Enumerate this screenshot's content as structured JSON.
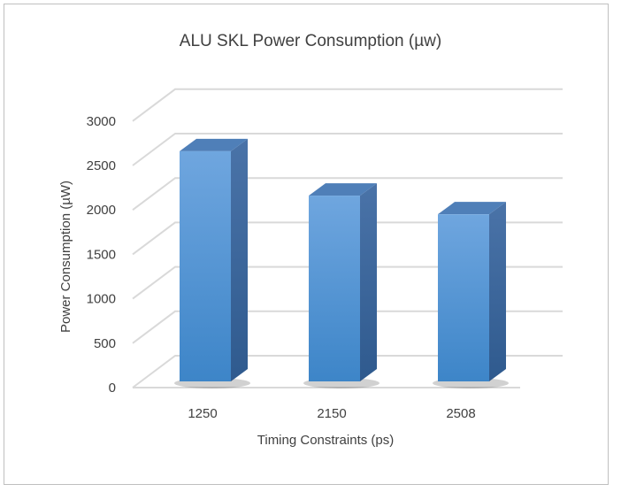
{
  "chart_data": {
    "type": "bar",
    "title": "ALU SKL Power Consumption (µw)",
    "xlabel": "Timing Constraints (ps)",
    "ylabel": "Power Consumption (µW)",
    "categories": [
      "1250",
      "2150",
      "2508"
    ],
    "values": [
      2800,
      2300,
      2090
    ],
    "ylim": [
      0,
      3000
    ],
    "yticks": [
      "0",
      "500",
      "1000",
      "1500",
      "2000",
      "2500",
      "3000"
    ],
    "grid": true,
    "legend": "none",
    "bar_color": "#5b9bd5"
  }
}
